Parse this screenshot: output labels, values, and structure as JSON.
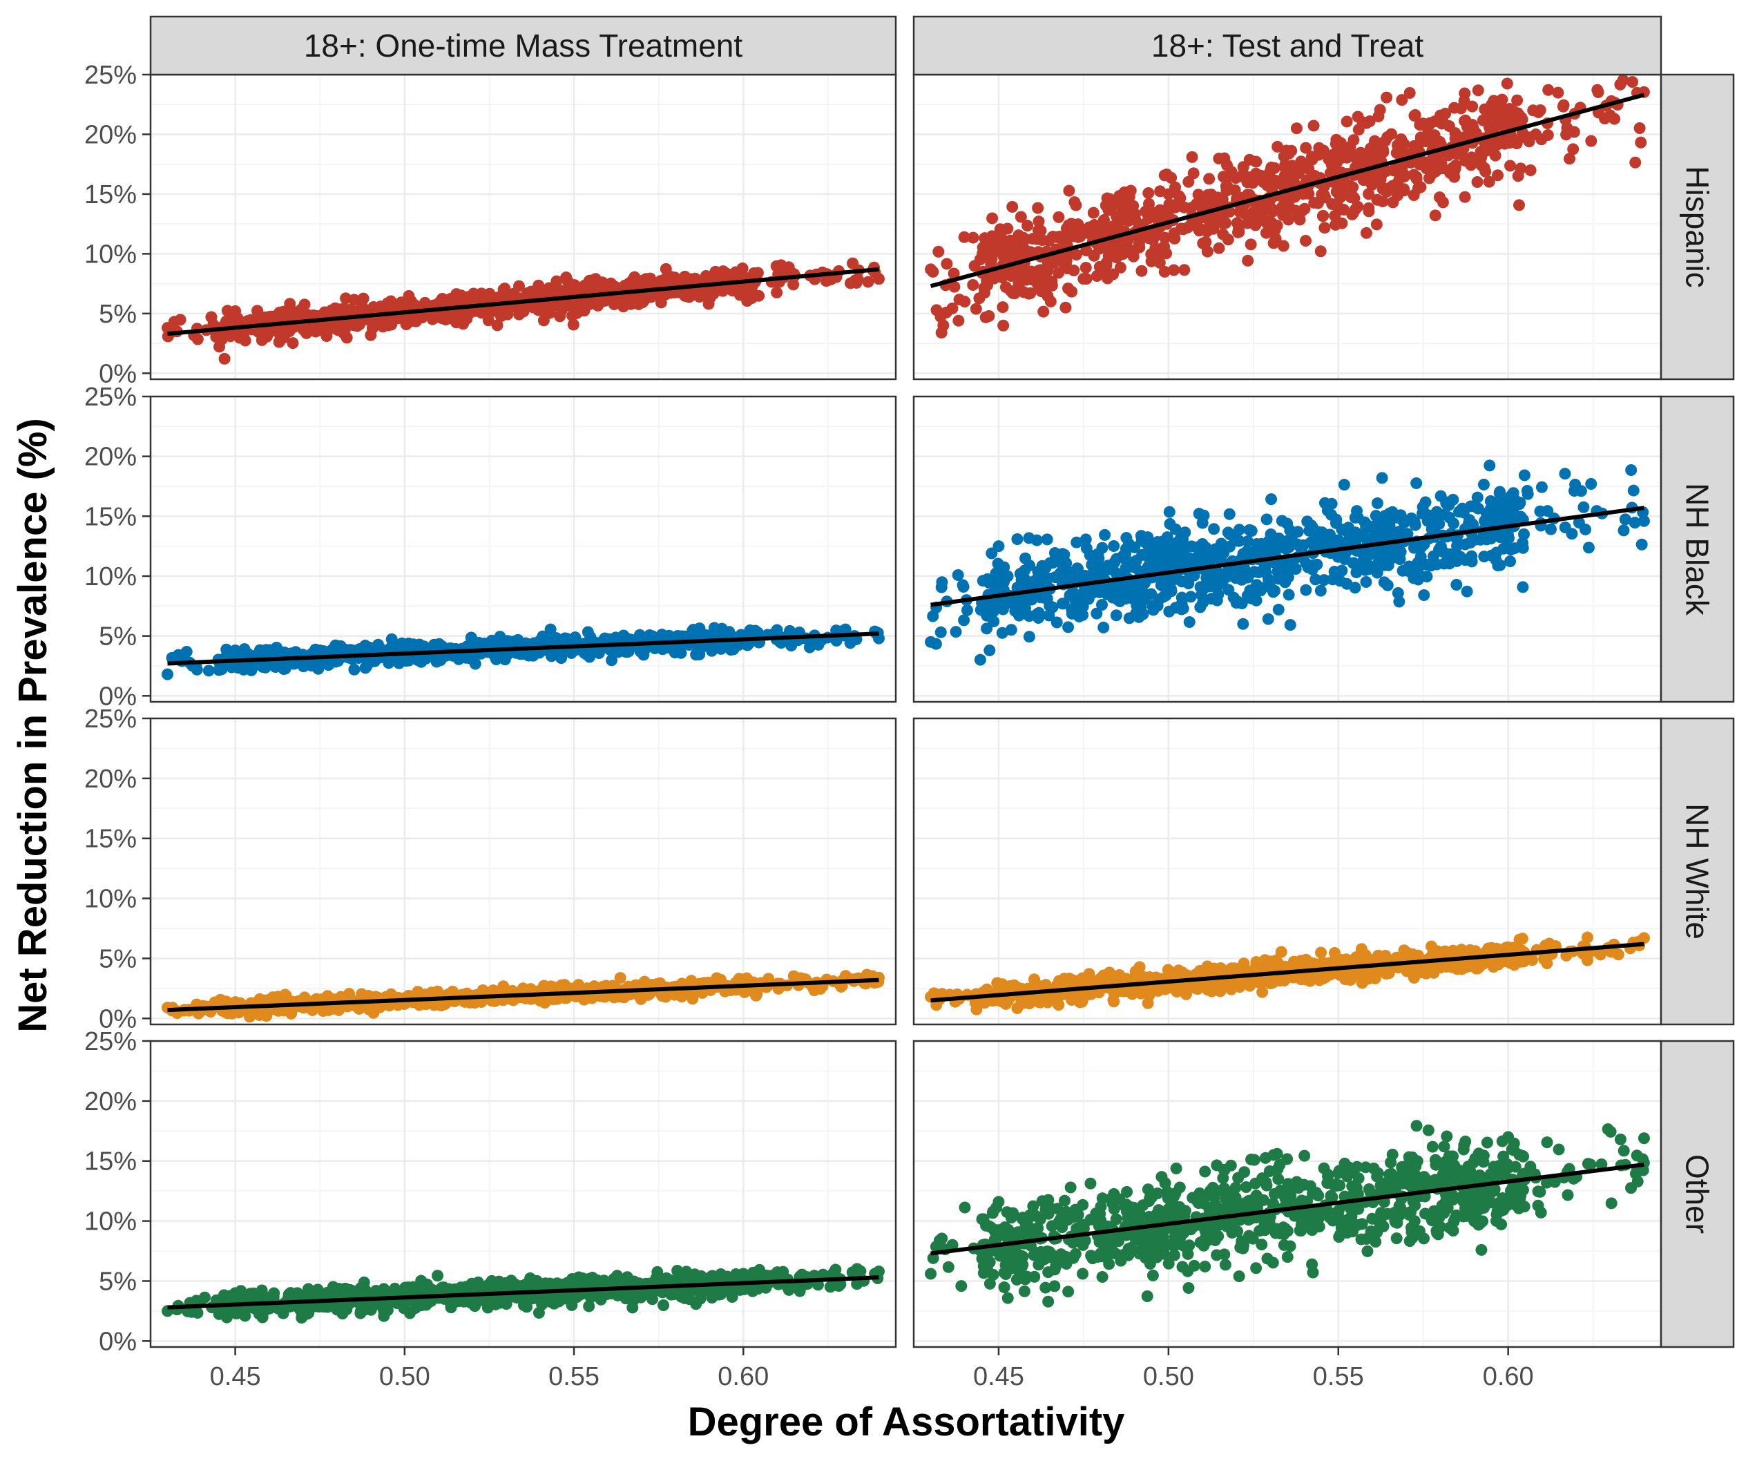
{
  "chart_data": {
    "type": "scatter",
    "facets": {
      "columns": [
        "18+: One-time Mass Treatment",
        "18+: Test and Treat"
      ],
      "rows": [
        "Hispanic",
        "NH Black",
        "NH White",
        "Other"
      ]
    },
    "xlabel": "Degree of Assortativity",
    "ylabel": "Net Reduction in Prevalence (%)",
    "xlim": [
      0.43,
      0.64
    ],
    "ylim": [
      0,
      25
    ],
    "x_ticks": [
      "0.45",
      "0.50",
      "0.55",
      "0.60"
    ],
    "x_tick_values": [
      0.45,
      0.5,
      0.55,
      0.6
    ],
    "y_ticks": [
      "0%",
      "5%",
      "10%",
      "15%",
      "20%",
      "25%"
    ],
    "y_tick_values": [
      0,
      5,
      10,
      15,
      20,
      25
    ],
    "grid": true,
    "series_colors": {
      "Hispanic": "#C0392B",
      "NH Black": "#0072B2",
      "NH White": "#E08A1E",
      "Other": "#1E7B45"
    },
    "panels": [
      {
        "column": "18+: One-time Mass Treatment",
        "row": "Hispanic",
        "fit": {
          "x": [
            0.43,
            0.64
          ],
          "y": [
            3.3,
            8.7
          ]
        },
        "spread": 0.6,
        "points_sample": [
          [
            0.43,
            3.8
          ],
          [
            0.45,
            5.2
          ],
          [
            0.5,
            5.6
          ],
          [
            0.55,
            7.0
          ],
          [
            0.6,
            7.8
          ],
          [
            0.64,
            7.9
          ]
        ]
      },
      {
        "column": "18+: One-time Mass Treatment",
        "row": "NH Black",
        "fit": {
          "x": [
            0.43,
            0.64
          ],
          "y": [
            2.7,
            5.2
          ]
        },
        "spread": 0.4,
        "points_sample": [
          [
            0.43,
            1.8
          ],
          [
            0.45,
            3.8
          ],
          [
            0.5,
            3.6
          ],
          [
            0.55,
            4.1
          ],
          [
            0.6,
            4.6
          ],
          [
            0.64,
            4.8
          ]
        ]
      },
      {
        "column": "18+: One-time Mass Treatment",
        "row": "NH White",
        "fit": {
          "x": [
            0.43,
            0.64
          ],
          "y": [
            0.7,
            3.2
          ]
        },
        "spread": 0.3,
        "points_sample": [
          [
            0.43,
            0.9
          ],
          [
            0.5,
            1.7
          ],
          [
            0.55,
            2.2
          ],
          [
            0.6,
            2.8
          ],
          [
            0.64,
            3.4
          ]
        ]
      },
      {
        "column": "18+: One-time Mass Treatment",
        "row": "Other",
        "fit": {
          "x": [
            0.43,
            0.64
          ],
          "y": [
            2.8,
            5.3
          ]
        },
        "spread": 0.5,
        "points_sample": [
          [
            0.43,
            2.5
          ],
          [
            0.45,
            4.0
          ],
          [
            0.5,
            3.9
          ],
          [
            0.55,
            4.6
          ],
          [
            0.6,
            5.6
          ],
          [
            0.64,
            5.8
          ]
        ]
      },
      {
        "column": "18+: Test and Treat",
        "row": "Hispanic",
        "fit": {
          "x": [
            0.43,
            0.64
          ],
          "y": [
            7.3,
            23.3
          ]
        },
        "spread": 2.0,
        "points_sample": [
          [
            0.43,
            8.7
          ],
          [
            0.44,
            6.0
          ],
          [
            0.45,
            10.5
          ],
          [
            0.5,
            15.0
          ],
          [
            0.55,
            18.0
          ],
          [
            0.6,
            20.0
          ],
          [
            0.63,
            21.6
          ]
        ]
      },
      {
        "column": "18+: Test and Treat",
        "row": "NH Black",
        "fit": {
          "x": [
            0.43,
            0.64
          ],
          "y": [
            7.6,
            15.7
          ]
        },
        "spread": 1.8,
        "points_sample": [
          [
            0.43,
            4.5
          ],
          [
            0.45,
            12.5
          ],
          [
            0.5,
            10.5
          ],
          [
            0.55,
            13.0
          ],
          [
            0.6,
            16.5
          ],
          [
            0.64,
            14.6
          ]
        ]
      },
      {
        "column": "18+: Test and Treat",
        "row": "NH White",
        "fit": {
          "x": [
            0.43,
            0.64
          ],
          "y": [
            1.5,
            6.2
          ]
        },
        "spread": 0.5,
        "points_sample": [
          [
            0.43,
            1.8
          ],
          [
            0.5,
            3.0
          ],
          [
            0.55,
            4.2
          ],
          [
            0.6,
            5.3
          ],
          [
            0.64,
            6.7
          ]
        ]
      },
      {
        "column": "18+: Test and Treat",
        "row": "Other",
        "fit": {
          "x": [
            0.43,
            0.64
          ],
          "y": [
            7.3,
            14.7
          ]
        },
        "spread": 1.8,
        "points_sample": [
          [
            0.43,
            5.6
          ],
          [
            0.45,
            11.6
          ],
          [
            0.5,
            11.0
          ],
          [
            0.55,
            14.0
          ],
          [
            0.6,
            17.0
          ],
          [
            0.64,
            16.9
          ]
        ]
      }
    ]
  }
}
